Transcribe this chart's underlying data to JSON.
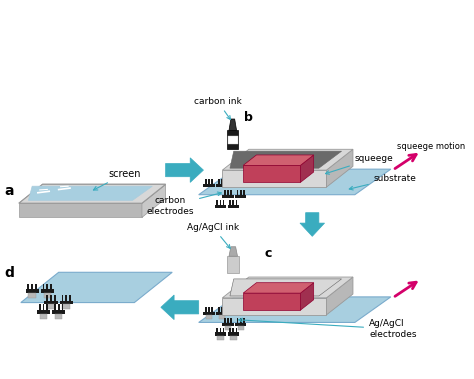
{
  "figure_width": 4.74,
  "figure_height": 3.79,
  "dpi": 100,
  "bg_color": "#ffffff",
  "labels": {
    "a": "a",
    "b": "b",
    "c": "c",
    "d": "d"
  },
  "annotations": {
    "screen": "screen",
    "carbon_ink": "carbon ink",
    "squeege_motion": "squeege motion",
    "squeege": "squeege",
    "carbon_electrodes": "carbon\nelectrodes",
    "substrate": "substrate",
    "agagcl_ink": "Ag/AgCl ink",
    "agagcl_electrodes": "Ag/AgCl\nelectrodes"
  },
  "arrow_color": "#3aacbf",
  "magenta_arrow": "#d4006a",
  "tray_color": "#d8d8d8",
  "tray_edge": "#b8b8b8",
  "tray_top": "#e8e8e8",
  "substrate_color": "#a8cfe0",
  "squeege_color": "#c0405a",
  "electrode_color": "#1a1a1a",
  "agagcl_color": "#b8b8b8",
  "carbon_inner": "#6a6a6a",
  "agagcl_inner": "#d8d8d8"
}
